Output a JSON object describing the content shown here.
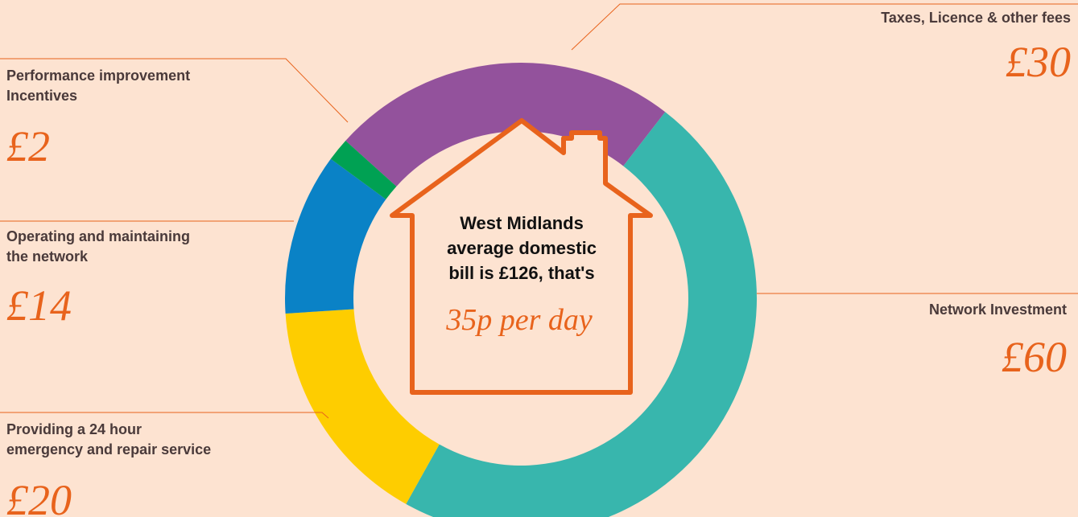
{
  "chart_data": {
    "type": "donut",
    "categories": [
      [
        "Taxes, Licence & other fees"
      ],
      [
        "Network Investment"
      ],
      [
        "Providing a 24 hour",
        "emergency and repair service"
      ],
      [
        "Operating and maintaining",
        "the network"
      ],
      [
        "Performance improvement",
        "Incentives"
      ]
    ],
    "values": [
      30,
      60,
      20,
      14,
      2
    ],
    "value_labels": [
      "£30",
      "£60",
      "£20",
      "£14",
      "£2"
    ],
    "colors": [
      "#93529c",
      "#38b6ad",
      "#fecd00",
      "#0a82c6",
      "#00a153"
    ],
    "annotations": [
      "West Midlands",
      "average domestic",
      "bill is £126, that's",
      "35p per day"
    ]
  }
}
